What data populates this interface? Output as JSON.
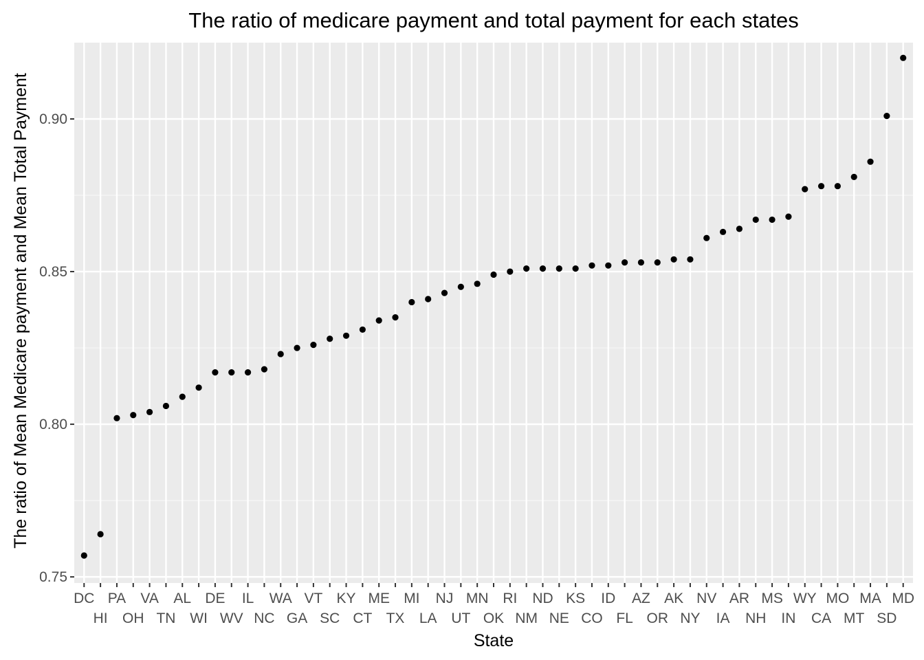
{
  "chart_data": {
    "type": "scatter",
    "title": "The ratio of medicare payment and total payment for each states",
    "xlabel": "State",
    "ylabel": "The ratio of Mean Medicare payment and Mean Total Payment",
    "ylim": [
      0.748,
      0.925
    ],
    "yticks": [
      "0.75",
      "0.80",
      "0.85",
      "0.90"
    ],
    "grid": true,
    "legend": "none",
    "colors": {
      "panel": "#ebebeb",
      "grid_major": "#ffffff",
      "point": "#000000",
      "tick_text": "#4d4d4d"
    },
    "categories": [
      "DC",
      "HI",
      "PA",
      "OH",
      "VA",
      "TN",
      "AL",
      "WI",
      "DE",
      "WV",
      "IL",
      "NC",
      "WA",
      "GA",
      "VT",
      "SC",
      "KY",
      "CT",
      "ME",
      "TX",
      "MI",
      "LA",
      "NJ",
      "UT",
      "MN",
      "OK",
      "RI",
      "NM",
      "ND",
      "NE",
      "KS",
      "CO",
      "ID",
      "FL",
      "AZ",
      "OR",
      "AK",
      "NY",
      "NV",
      "IA",
      "AR",
      "NH",
      "MS",
      "IN",
      "WY",
      "CA",
      "MO",
      "MT",
      "MA",
      "SD",
      "MD"
    ],
    "values": [
      0.757,
      0.764,
      0.802,
      0.803,
      0.804,
      0.806,
      0.809,
      0.812,
      0.817,
      0.817,
      0.817,
      0.818,
      0.823,
      0.825,
      0.826,
      0.828,
      0.829,
      0.831,
      0.834,
      0.835,
      0.84,
      0.841,
      0.843,
      0.845,
      0.846,
      0.849,
      0.85,
      0.851,
      0.851,
      0.851,
      0.851,
      0.852,
      0.852,
      0.853,
      0.853,
      0.853,
      0.854,
      0.854,
      0.861,
      0.863,
      0.864,
      0.867,
      0.867,
      0.868,
      0.877,
      0.878,
      0.878,
      0.881,
      0.886,
      0.901,
      0.92
    ]
  }
}
